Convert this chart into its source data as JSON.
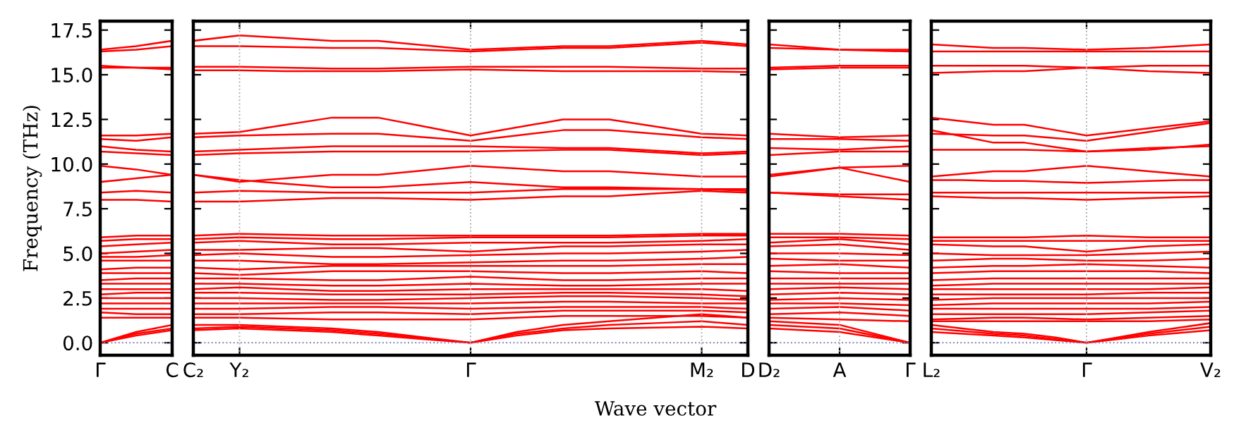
{
  "chart_data": [
    {
      "type": "line",
      "ylabel": "Frequency (THz)",
      "categories": [
        "Γ",
        null,
        "C"
      ],
      "ylim": [
        -0.7,
        18.0
      ],
      "yticks": [
        {
          "value": 0,
          "label": "0.0"
        },
        {
          "value": 2.5,
          "label": "2.5"
        },
        {
          "value": 5,
          "label": "5.0"
        },
        {
          "value": 7.5,
          "label": "7.5"
        },
        {
          "value": 10,
          "label": "10.0"
        },
        {
          "value": 12.5,
          "label": "12.5"
        },
        {
          "value": 15,
          "label": "15.0"
        },
        {
          "value": 17.5,
          "label": "17.5"
        }
      ],
      "line_style": "solid",
      "ref_lines": [
        {
          "axis": "y",
          "value": 0,
          "color": "#8080c0",
          "line_style": "dotted"
        }
      ],
      "series": [
        {
          "color": "#ff0000",
          "values": [
            16.4,
            16.6,
            16.9
          ]
        },
        {
          "color": "#ff0000",
          "values": [
            16.3,
            16.4,
            16.6
          ]
        },
        {
          "color": "#ff0000",
          "values": [
            15.5,
            15.4,
            15.4
          ]
        },
        {
          "color": "#ff0000",
          "values": [
            15.4,
            15.4,
            15.3
          ]
        },
        {
          "color": "#ff0000",
          "values": [
            11.6,
            11.6,
            11.7
          ]
        },
        {
          "color": "#ff0000",
          "values": [
            11.4,
            11.3,
            11.5
          ]
        },
        {
          "color": "#ff0000",
          "values": [
            11.0,
            10.8,
            10.7
          ]
        },
        {
          "color": "#ff0000",
          "values": [
            10.7,
            10.6,
            10.5
          ]
        },
        {
          "color": "#ff0000",
          "values": [
            9.9,
            9.7,
            9.4
          ]
        },
        {
          "color": "#ff0000",
          "values": [
            9.0,
            9.2,
            9.4
          ]
        },
        {
          "color": "#ff0000",
          "values": [
            8.4,
            8.5,
            8.4
          ]
        },
        {
          "color": "#ff0000",
          "values": [
            8.0,
            8.0,
            7.9
          ]
        },
        {
          "color": "#ff0000",
          "values": [
            5.9,
            6.0,
            6.0
          ]
        },
        {
          "color": "#ff0000",
          "values": [
            5.7,
            5.8,
            5.8
          ]
        },
        {
          "color": "#ff0000",
          "values": [
            5.4,
            5.5,
            5.6
          ]
        },
        {
          "color": "#ff0000",
          "values": [
            5.0,
            5.1,
            5.2
          ]
        },
        {
          "color": "#ff0000",
          "values": [
            4.8,
            4.8,
            4.9
          ]
        },
        {
          "color": "#ff0000",
          "values": [
            4.6,
            4.6,
            4.6
          ]
        },
        {
          "color": "#ff0000",
          "values": [
            4.1,
            4.2,
            4.2
          ]
        },
        {
          "color": "#ff0000",
          "values": [
            3.9,
            3.9,
            3.9
          ]
        },
        {
          "color": "#ff0000",
          "values": [
            3.5,
            3.6,
            3.6
          ]
        },
        {
          "color": "#ff0000",
          "values": [
            3.3,
            3.3,
            3.3
          ]
        },
        {
          "color": "#ff0000",
          "values": [
            3.0,
            3.0,
            3.0
          ]
        },
        {
          "color": "#ff0000",
          "values": [
            2.7,
            2.8,
            2.8
          ]
        },
        {
          "color": "#ff0000",
          "values": [
            2.5,
            2.5,
            2.5
          ]
        },
        {
          "color": "#ff0000",
          "values": [
            2.2,
            2.2,
            2.2
          ]
        },
        {
          "color": "#ff0000",
          "values": [
            1.9,
            1.9,
            1.9
          ]
        },
        {
          "color": "#ff0000",
          "values": [
            1.7,
            1.6,
            1.6
          ]
        },
        {
          "color": "#ff0000",
          "values": [
            1.4,
            1.4,
            1.4
          ]
        },
        {
          "color": "#ff0000",
          "values": [
            0,
            0.6,
            1.0
          ]
        },
        {
          "color": "#ff0000",
          "values": [
            0,
            0.5,
            0.8
          ]
        },
        {
          "color": "#ff0000",
          "values": [
            0,
            0.4,
            0.7
          ]
        }
      ]
    },
    {
      "type": "line",
      "xlabel": "Wave vector",
      "tick_labels": "x",
      "categories": [
        "C₂",
        "Y₂",
        null,
        null,
        null,
        null,
        "Γ",
        null,
        null,
        null,
        null,
        "M₂",
        "D"
      ],
      "ylim": [
        -0.7,
        18.0
      ],
      "yticks": [
        {
          "value": 0,
          "label": null
        },
        {
          "value": 2.5,
          "label": null
        },
        {
          "value": 5,
          "label": null
        },
        {
          "value": 7.5,
          "label": null
        },
        {
          "value": 10,
          "label": null
        },
        {
          "value": 12.5,
          "label": null
        },
        {
          "value": 15,
          "label": null
        },
        {
          "value": 17.5,
          "label": null
        }
      ],
      "line_style": "solid",
      "ref_lines": [
        {
          "axis": "y",
          "value": 0,
          "color": "#8080c0",
          "line_style": "dotted"
        },
        {
          "axis": "x",
          "value": "Y₂",
          "color": "#b0b0b0",
          "line_style": "dotted"
        },
        {
          "axis": "x",
          "value": "Γ",
          "color": "#b0b0b0",
          "line_style": "dotted"
        },
        {
          "axis": "x",
          "value": "M₂",
          "color": "#b0b0b0",
          "line_style": "dotted"
        }
      ],
      "series": [
        {
          "color": "#ff0000",
          "values": [
            16.9,
            17.2,
            17.05,
            16.9,
            16.9,
            16.65,
            16.4,
            16.5,
            16.6,
            16.6,
            16.75,
            16.9,
            16.7
          ]
        },
        {
          "color": "#ff0000",
          "values": [
            16.6,
            16.6,
            16.55,
            16.5,
            16.5,
            16.4,
            16.3,
            16.4,
            16.5,
            16.5,
            16.65,
            16.8,
            16.6
          ]
        },
        {
          "color": "#ff0000",
          "values": [
            15.45,
            15.45,
            15.4,
            15.35,
            15.35,
            15.4,
            15.45,
            15.45,
            15.45,
            15.45,
            15.4,
            15.35,
            15.35
          ]
        },
        {
          "color": "#ff0000",
          "values": [
            15.25,
            15.25,
            15.2,
            15.2,
            15.2,
            15.25,
            15.3,
            15.25,
            15.2,
            15.2,
            15.2,
            15.2,
            15.15
          ]
        },
        {
          "color": "#ff0000",
          "values": [
            11.7,
            11.8,
            12.2,
            12.6,
            12.6,
            12.1,
            11.6,
            12.05,
            12.5,
            12.5,
            12.1,
            11.7,
            11.6
          ]
        },
        {
          "color": "#ff0000",
          "values": [
            11.5,
            11.6,
            11.65,
            11.7,
            11.7,
            11.5,
            11.3,
            11.6,
            11.9,
            11.9,
            11.7,
            11.5,
            11.4
          ]
        },
        {
          "color": "#ff0000",
          "values": [
            10.7,
            10.8,
            10.9,
            11.0,
            11.0,
            11.0,
            11.0,
            10.95,
            10.9,
            10.9,
            10.75,
            10.6,
            10.7
          ]
        },
        {
          "color": "#ff0000",
          "values": [
            10.5,
            10.6,
            10.65,
            10.7,
            10.7,
            10.7,
            10.7,
            10.75,
            10.8,
            10.8,
            10.65,
            10.5,
            10.6
          ]
        },
        {
          "color": "#ff0000",
          "values": [
            9.4,
            9.0,
            9.2,
            9.4,
            9.4,
            9.65,
            9.9,
            9.75,
            9.6,
            9.6,
            9.45,
            9.3,
            9.3
          ]
        },
        {
          "color": "#ff0000",
          "values": [
            9.4,
            9.1,
            8.9,
            8.7,
            8.7,
            8.85,
            9.0,
            8.85,
            8.7,
            8.7,
            8.65,
            8.6,
            8.5
          ]
        },
        {
          "color": "#ff0000",
          "values": [
            8.4,
            8.5,
            8.45,
            8.4,
            8.4,
            8.4,
            8.4,
            8.5,
            8.6,
            8.6,
            8.6,
            8.6,
            8.6
          ]
        },
        {
          "color": "#ff0000",
          "values": [
            7.9,
            7.9,
            8.0,
            8.1,
            8.1,
            8.05,
            8.0,
            8.1,
            8.2,
            8.2,
            8.35,
            8.5,
            8.4
          ]
        },
        {
          "color": "#ff0000",
          "values": [
            6.0,
            6.1,
            6.05,
            6.0,
            6.0,
            6.0,
            6.0,
            6.0,
            6.0,
            6.0,
            6.05,
            6.1,
            6.1
          ]
        },
        {
          "color": "#ff0000",
          "values": [
            5.8,
            5.9,
            5.85,
            5.8,
            5.8,
            5.85,
            5.9,
            5.9,
            5.9,
            5.9,
            5.95,
            6.0,
            6.0
          ]
        },
        {
          "color": "#ff0000",
          "values": [
            5.6,
            5.7,
            5.6,
            5.5,
            5.5,
            5.55,
            5.6,
            5.6,
            5.6,
            5.6,
            5.65,
            5.7,
            5.8
          ]
        },
        {
          "color": "#ff0000",
          "values": [
            5.2,
            5.2,
            5.25,
            5.3,
            5.3,
            5.2,
            5.1,
            5.25,
            5.4,
            5.4,
            5.45,
            5.5,
            5.5
          ]
        },
        {
          "color": "#ff0000",
          "values": [
            4.9,
            5.0,
            4.9,
            4.8,
            4.8,
            4.85,
            4.9,
            4.95,
            5.0,
            5.0,
            5.05,
            5.1,
            5.2
          ]
        },
        {
          "color": "#ff0000",
          "values": [
            4.6,
            4.6,
            4.5,
            4.4,
            4.4,
            4.45,
            4.5,
            4.55,
            4.6,
            4.6,
            4.65,
            4.7,
            4.8
          ]
        },
        {
          "color": "#ff0000",
          "values": [
            4.2,
            4.1,
            4.2,
            4.3,
            4.3,
            4.3,
            4.3,
            4.3,
            4.3,
            4.3,
            4.35,
            4.4,
            4.4
          ]
        },
        {
          "color": "#ff0000",
          "values": [
            3.9,
            3.8,
            3.9,
            4.0,
            4.0,
            4.0,
            4.0,
            3.95,
            3.9,
            3.9,
            3.95,
            4.0,
            3.9
          ]
        },
        {
          "color": "#ff0000",
          "values": [
            3.6,
            3.6,
            3.55,
            3.5,
            3.5,
            3.6,
            3.7,
            3.6,
            3.5,
            3.5,
            3.55,
            3.6,
            3.6
          ]
        },
        {
          "color": "#ff0000",
          "values": [
            3.3,
            3.3,
            3.25,
            3.2,
            3.2,
            3.25,
            3.3,
            3.25,
            3.2,
            3.2,
            3.25,
            3.3,
            3.3
          ]
        },
        {
          "color": "#ff0000",
          "values": [
            3.0,
            3.1,
            3.0,
            2.9,
            2.9,
            2.95,
            3.0,
            3.0,
            3.0,
            3.0,
            3.0,
            3.0,
            2.9
          ]
        },
        {
          "color": "#ff0000",
          "values": [
            2.8,
            2.8,
            2.75,
            2.7,
            2.7,
            2.7,
            2.7,
            2.75,
            2.8,
            2.8,
            2.75,
            2.7,
            2.6
          ]
        },
        {
          "color": "#ff0000",
          "values": [
            2.5,
            2.5,
            2.45,
            2.4,
            2.4,
            2.45,
            2.5,
            2.55,
            2.6,
            2.6,
            2.55,
            2.5,
            2.4
          ]
        },
        {
          "color": "#ff0000",
          "values": [
            2.2,
            2.2,
            2.2,
            2.2,
            2.2,
            2.2,
            2.2,
            2.25,
            2.3,
            2.3,
            2.25,
            2.2,
            2.2
          ]
        },
        {
          "color": "#ff0000",
          "values": [
            1.9,
            1.9,
            1.95,
            2.0,
            2.0,
            1.95,
            1.9,
            1.95,
            2.0,
            2.0,
            2.0,
            2.0,
            1.9
          ]
        },
        {
          "color": "#ff0000",
          "values": [
            1.6,
            1.6,
            1.65,
            1.7,
            1.7,
            1.65,
            1.6,
            1.7,
            1.8,
            1.8,
            1.8,
            1.8,
            1.7
          ]
        },
        {
          "color": "#ff0000",
          "values": [
            1.4,
            1.4,
            1.35,
            1.3,
            1.3,
            1.3,
            1.3,
            1.4,
            1.5,
            1.5,
            1.5,
            1.5,
            1.4
          ]
        },
        {
          "color": "#ff0000",
          "values": [
            1.0,
            1.0,
            0.9,
            0.8,
            0.6,
            0.3,
            0,
            0.6,
            1.0,
            1.2,
            1.4,
            1.6,
            1.4
          ]
        },
        {
          "color": "#ff0000",
          "values": [
            0.8,
            0.9,
            0.8,
            0.7,
            0.5,
            0.25,
            0,
            0.5,
            0.8,
            1.0,
            1.1,
            1.2,
            1.0
          ]
        },
        {
          "color": "#ff0000",
          "values": [
            0.7,
            0.8,
            0.7,
            0.6,
            0.4,
            0.2,
            0,
            0.4,
            0.7,
            0.8,
            0.85,
            0.9,
            0.8
          ]
        }
      ]
    },
    {
      "type": "line",
      "tick_labels": "x",
      "categories": [
        "D₂",
        "A",
        "Γ"
      ],
      "ylim": [
        -0.7,
        18.0
      ],
      "yticks": [
        {
          "value": 0,
          "label": null
        },
        {
          "value": 2.5,
          "label": null
        },
        {
          "value": 5,
          "label": null
        },
        {
          "value": 7.5,
          "label": null
        },
        {
          "value": 10,
          "label": null
        },
        {
          "value": 12.5,
          "label": null
        },
        {
          "value": 15,
          "label": null
        },
        {
          "value": 17.5,
          "label": null
        }
      ],
      "line_style": "solid",
      "ref_lines": [
        {
          "axis": "y",
          "value": 0,
          "color": "#8080c0",
          "line_style": "dotted"
        },
        {
          "axis": "x",
          "value": "A",
          "color": "#b0b0b0",
          "line_style": "dotted"
        }
      ],
      "series": [
        {
          "color": "#ff0000",
          "values": [
            16.7,
            16.4,
            16.4
          ]
        },
        {
          "color": "#ff0000",
          "values": [
            16.5,
            16.4,
            16.3
          ]
        },
        {
          "color": "#ff0000",
          "values": [
            15.4,
            15.5,
            15.5
          ]
        },
        {
          "color": "#ff0000",
          "values": [
            15.3,
            15.4,
            15.4
          ]
        },
        {
          "color": "#ff0000",
          "values": [
            11.7,
            11.5,
            11.6
          ]
        },
        {
          "color": "#ff0000",
          "values": [
            11.4,
            11.4,
            11.3
          ]
        },
        {
          "color": "#ff0000",
          "values": [
            10.9,
            10.8,
            11.0
          ]
        },
        {
          "color": "#ff0000",
          "values": [
            10.5,
            10.7,
            10.7
          ]
        },
        {
          "color": "#ff0000",
          "values": [
            9.4,
            9.8,
            9.9
          ]
        },
        {
          "color": "#ff0000",
          "values": [
            9.3,
            9.8,
            9.0
          ]
        },
        {
          "color": "#ff0000",
          "values": [
            8.4,
            8.3,
            8.3
          ]
        },
        {
          "color": "#ff0000",
          "values": [
            8.4,
            8.2,
            8.0
          ]
        },
        {
          "color": "#ff0000",
          "values": [
            6.1,
            6.1,
            6.0
          ]
        },
        {
          "color": "#ff0000",
          "values": [
            5.9,
            5.9,
            5.8
          ]
        },
        {
          "color": "#ff0000",
          "values": [
            5.6,
            5.8,
            5.5
          ]
        },
        {
          "color": "#ff0000",
          "values": [
            5.4,
            5.5,
            5.2
          ]
        },
        {
          "color": "#ff0000",
          "values": [
            5.0,
            5.0,
            4.9
          ]
        },
        {
          "color": "#ff0000",
          "values": [
            4.7,
            4.6,
            4.6
          ]
        },
        {
          "color": "#ff0000",
          "values": [
            4.3,
            4.4,
            4.2
          ]
        },
        {
          "color": "#ff0000",
          "values": [
            4.0,
            3.9,
            3.9
          ]
        },
        {
          "color": "#ff0000",
          "values": [
            3.6,
            3.6,
            3.6
          ]
        },
        {
          "color": "#ff0000",
          "values": [
            3.3,
            3.3,
            3.3
          ]
        },
        {
          "color": "#ff0000",
          "values": [
            3.0,
            3.1,
            3.0
          ]
        },
        {
          "color": "#ff0000",
          "values": [
            2.7,
            2.8,
            2.7
          ]
        },
        {
          "color": "#ff0000",
          "values": [
            2.4,
            2.5,
            2.4
          ]
        },
        {
          "color": "#ff0000",
          "values": [
            2.2,
            2.2,
            2.1
          ]
        },
        {
          "color": "#ff0000",
          "values": [
            1.9,
            2.0,
            1.8
          ]
        },
        {
          "color": "#ff0000",
          "values": [
            1.6,
            1.7,
            1.5
          ]
        },
        {
          "color": "#ff0000",
          "values": [
            1.4,
            1.3,
            1.2
          ]
        },
        {
          "color": "#ff0000",
          "values": [
            1.2,
            1.0,
            0
          ]
        },
        {
          "color": "#ff0000",
          "values": [
            1.0,
            0.8,
            0
          ]
        },
        {
          "color": "#ff0000",
          "values": [
            0.8,
            0.6,
            0
          ]
        }
      ]
    },
    {
      "type": "line",
      "tick_labels": "x",
      "categories": [
        "L₂",
        null,
        null,
        null,
        null,
        "Γ",
        null,
        null,
        null,
        "V₂"
      ],
      "ylim": [
        -0.7,
        18.0
      ],
      "yticks": [
        {
          "value": 0,
          "label": null
        },
        {
          "value": 2.5,
          "label": null
        },
        {
          "value": 5,
          "label": null
        },
        {
          "value": 7.5,
          "label": null
        },
        {
          "value": 10,
          "label": null
        },
        {
          "value": 12.5,
          "label": null
        },
        {
          "value": 15,
          "label": null
        },
        {
          "value": 17.5,
          "label": null
        }
      ],
      "line_style": "solid",
      "ref_lines": [
        {
          "axis": "y",
          "value": 0,
          "color": "#8080c0",
          "line_style": "dotted"
        },
        {
          "axis": "x",
          "value": "Γ",
          "color": "#b0b0b0",
          "line_style": "dotted"
        }
      ],
      "series": [
        {
          "color": "#ff0000",
          "values": [
            16.7,
            16.6,
            16.5,
            16.5,
            16.45,
            16.4,
            16.45,
            16.5,
            16.6,
            16.7
          ]
        },
        {
          "color": "#ff0000",
          "values": [
            16.3,
            16.3,
            16.3,
            16.3,
            16.3,
            16.3,
            16.3,
            16.3,
            16.3,
            16.3
          ]
        },
        {
          "color": "#ff0000",
          "values": [
            15.5,
            15.5,
            15.5,
            15.5,
            15.45,
            15.4,
            15.45,
            15.5,
            15.5,
            15.5
          ]
        },
        {
          "color": "#ff0000",
          "values": [
            15.1,
            15.15,
            15.2,
            15.2,
            15.3,
            15.4,
            15.3,
            15.2,
            15.15,
            15.1
          ]
        },
        {
          "color": "#ff0000",
          "values": [
            12.6,
            12.4,
            12.2,
            12.2,
            11.9,
            11.6,
            11.8,
            12.0,
            12.2,
            12.4
          ]
        },
        {
          "color": "#ff0000",
          "values": [
            11.7,
            11.65,
            11.6,
            11.6,
            11.45,
            11.3,
            11.55,
            11.8,
            12.05,
            12.3
          ]
        },
        {
          "color": "#ff0000",
          "values": [
            11.9,
            11.55,
            11.2,
            11.2,
            10.95,
            10.7,
            10.75,
            10.8,
            10.95,
            11.1
          ]
        },
        {
          "color": "#ff0000",
          "values": [
            10.8,
            10.8,
            10.8,
            10.8,
            10.75,
            10.7,
            10.8,
            10.9,
            10.95,
            11.0
          ]
        },
        {
          "color": "#ff0000",
          "values": [
            9.3,
            9.45,
            9.6,
            9.6,
            9.75,
            9.9,
            9.75,
            9.6,
            9.45,
            9.3
          ]
        },
        {
          "color": "#ff0000",
          "values": [
            9.1,
            9.1,
            9.05,
            9.05,
            9.0,
            8.95,
            9.0,
            9.05,
            9.1,
            9.1
          ]
        },
        {
          "color": "#ff0000",
          "values": [
            8.4,
            8.4,
            8.4,
            8.4,
            8.4,
            8.4,
            8.4,
            8.4,
            8.4,
            8.4
          ]
        },
        {
          "color": "#ff0000",
          "values": [
            8.2,
            8.15,
            8.1,
            8.1,
            8.05,
            8.0,
            8.05,
            8.1,
            8.15,
            8.2
          ]
        },
        {
          "color": "#ff0000",
          "values": [
            5.9,
            5.9,
            5.9,
            5.9,
            5.95,
            6.0,
            5.95,
            5.9,
            5.9,
            5.9
          ]
        },
        {
          "color": "#ff0000",
          "values": [
            5.7,
            5.7,
            5.7,
            5.7,
            5.7,
            5.7,
            5.7,
            5.7,
            5.7,
            5.7
          ]
        },
        {
          "color": "#ff0000",
          "values": [
            5.5,
            5.45,
            5.4,
            5.4,
            5.25,
            5.1,
            5.25,
            5.4,
            5.45,
            5.5
          ]
        },
        {
          "color": "#ff0000",
          "values": [
            5.0,
            4.95,
            4.9,
            4.9,
            4.9,
            4.9,
            4.95,
            5.0,
            5.05,
            5.1
          ]
        },
        {
          "color": "#ff0000",
          "values": [
            4.6,
            4.65,
            4.7,
            4.7,
            4.65,
            4.6,
            4.6,
            4.6,
            4.65,
            4.7
          ]
        },
        {
          "color": "#ff0000",
          "values": [
            4.2,
            4.25,
            4.3,
            4.3,
            4.35,
            4.4,
            4.35,
            4.3,
            4.25,
            4.2
          ]
        },
        {
          "color": "#ff0000",
          "values": [
            3.9,
            3.95,
            4.0,
            4.0,
            4.0,
            4.0,
            4.0,
            4.0,
            3.95,
            3.9
          ]
        },
        {
          "color": "#ff0000",
          "values": [
            3.5,
            3.55,
            3.6,
            3.6,
            3.6,
            3.6,
            3.6,
            3.6,
            3.6,
            3.6
          ]
        },
        {
          "color": "#ff0000",
          "values": [
            3.2,
            3.25,
            3.3,
            3.3,
            3.3,
            3.3,
            3.3,
            3.3,
            3.3,
            3.3
          ]
        },
        {
          "color": "#ff0000",
          "values": [
            3.0,
            3.0,
            3.0,
            3.0,
            3.0,
            3.0,
            3.0,
            3.0,
            3.05,
            3.1
          ]
        },
        {
          "color": "#ff0000",
          "values": [
            2.7,
            2.7,
            2.7,
            2.7,
            2.7,
            2.7,
            2.75,
            2.8,
            2.8,
            2.8
          ]
        },
        {
          "color": "#ff0000",
          "values": [
            2.4,
            2.45,
            2.5,
            2.5,
            2.5,
            2.5,
            2.5,
            2.5,
            2.5,
            2.5
          ]
        },
        {
          "color": "#ff0000",
          "values": [
            2.1,
            2.15,
            2.2,
            2.2,
            2.2,
            2.2,
            2.2,
            2.2,
            2.25,
            2.3
          ]
        },
        {
          "color": "#ff0000",
          "values": [
            1.9,
            1.9,
            1.9,
            1.9,
            1.9,
            1.9,
            1.9,
            1.9,
            1.95,
            2.0
          ]
        },
        {
          "color": "#ff0000",
          "values": [
            1.6,
            1.6,
            1.6,
            1.6,
            1.6,
            1.6,
            1.65,
            1.7,
            1.75,
            1.8
          ]
        },
        {
          "color": "#ff0000",
          "values": [
            1.3,
            1.35,
            1.4,
            1.4,
            1.35,
            1.3,
            1.35,
            1.4,
            1.45,
            1.5
          ]
        },
        {
          "color": "#ff0000",
          "values": [
            1.2,
            1.2,
            1.2,
            1.2,
            1.2,
            1.2,
            1.2,
            1.2,
            1.25,
            1.3
          ]
        },
        {
          "color": "#ff0000",
          "values": [
            1.0,
            0.8,
            0.6,
            0.5,
            0.3,
            0,
            0.3,
            0.6,
            0.85,
            1.1
          ]
        },
        {
          "color": "#ff0000",
          "values": [
            0.8,
            0.65,
            0.5,
            0.4,
            0.2,
            0,
            0.25,
            0.5,
            0.7,
            0.9
          ]
        },
        {
          "color": "#ff0000",
          "values": [
            0.6,
            0.5,
            0.4,
            0.3,
            0.15,
            0,
            0.2,
            0.4,
            0.55,
            0.7
          ]
        }
      ]
    }
  ]
}
